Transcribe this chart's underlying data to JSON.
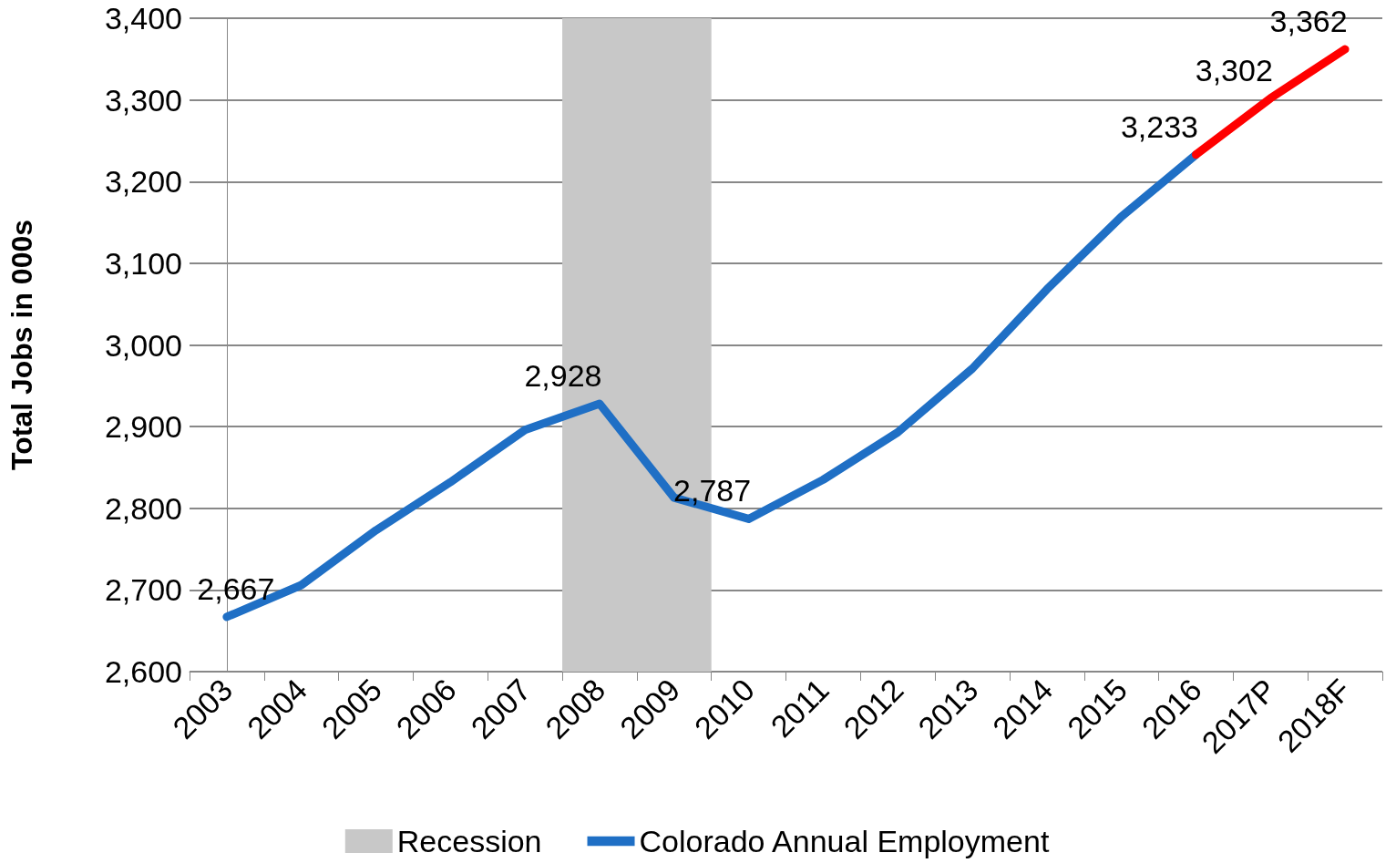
{
  "chart_data": {
    "type": "line",
    "ylabel": "Total Jobs in 000s",
    "categories": [
      "2003",
      "2004",
      "2005",
      "2006",
      "2007",
      "2008",
      "2009",
      "2010",
      "2011",
      "2012",
      "2013",
      "2014",
      "2015",
      "2016",
      "2017P",
      "2018F"
    ],
    "series": [
      {
        "name": "Colorado Annual Employment",
        "color": "#1f6fc5",
        "values": [
          2667,
          2706,
          2773,
          2832,
          2896,
          2928,
          2813,
          2787,
          2835,
          2893,
          2971,
          3068,
          3157,
          3233,
          null,
          null
        ],
        "value_labels": [
          "2,667",
          null,
          null,
          null,
          null,
          "2,928",
          null,
          "2,787",
          null,
          null,
          null,
          null,
          null,
          "3,233",
          null,
          null
        ]
      },
      {
        "color": "#ff0000",
        "values": [
          null,
          null,
          null,
          null,
          null,
          null,
          null,
          null,
          null,
          null,
          null,
          null,
          null,
          3233,
          3302,
          3362
        ],
        "value_labels": [
          null,
          null,
          null,
          null,
          null,
          null,
          null,
          null,
          null,
          null,
          null,
          null,
          null,
          null,
          "3,302",
          "3,362"
        ]
      }
    ],
    "ylim": [
      2600,
      3400
    ],
    "yticks": [
      {
        "value": 2600,
        "label": "2,600"
      },
      {
        "value": 2700,
        "label": "2,700"
      },
      {
        "value": 2800,
        "label": "2,800"
      },
      {
        "value": 2900,
        "label": "2,900"
      },
      {
        "value": 3000,
        "label": "3,000"
      },
      {
        "value": 3100,
        "label": "3,100"
      },
      {
        "value": 3200,
        "label": "3,200"
      },
      {
        "value": 3300,
        "label": "3,300"
      },
      {
        "value": 3400,
        "label": "3,400"
      }
    ],
    "bands": [
      {
        "axis": "x",
        "from": "2008",
        "to": "2009",
        "label": "Recession",
        "color": "#c8c8c8"
      }
    ],
    "grid": "y",
    "legend": "bottom",
    "marker": "none",
    "line_style": "solid"
  }
}
